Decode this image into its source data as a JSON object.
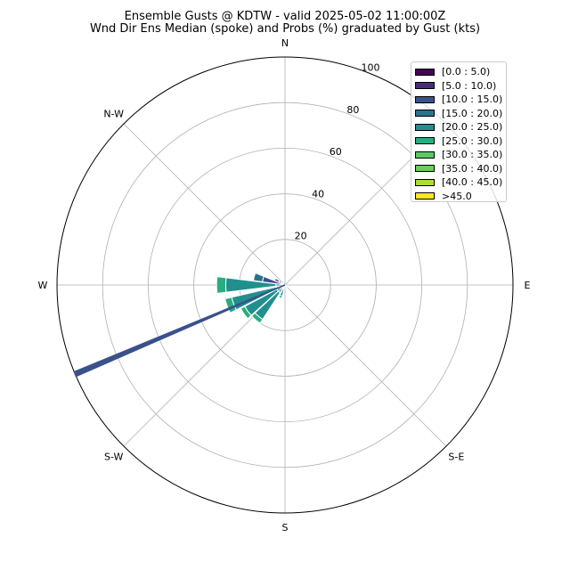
{
  "title": "Ensemble Gusts @ KDTW - valid 2025-05-02 11:00:00Z",
  "subtitle": "Wnd Dir Ens Median (spoke) and Probs (%) graduated by Gust (kts)",
  "chart_data": {
    "type": "windrose",
    "title": "Ensemble Gusts @ KDTW - valid 2025-05-02 11:00:00Z",
    "subtitle": "Wnd Dir Ens Median (spoke) and Probs (%) graduated by Gust (kts)",
    "rlim": [
      0,
      100
    ],
    "radial_ticks": [
      20,
      40,
      60,
      80,
      100
    ],
    "direction_labels": [
      {
        "label": "N",
        "deg": 0
      },
      {
        "label": "N-W",
        "deg": 315
      },
      {
        "label": "W",
        "deg": 270
      },
      {
        "label": "S-W",
        "deg": 225
      },
      {
        "label": "S",
        "deg": 180
      },
      {
        "label": "S-E",
        "deg": 135
      },
      {
        "label": "E",
        "deg": 90
      }
    ],
    "grid": true,
    "legend_position": "top-right",
    "bins": [
      {
        "label": "[0.0 : 5.0)",
        "color": "#440154"
      },
      {
        "label": "[5.0 : 10.0)",
        "color": "#472c7a"
      },
      {
        "label": "[10.0 : 15.0)",
        "color": "#3b518b"
      },
      {
        "label": "[15.0 : 20.0)",
        "color": "#2c718e"
      },
      {
        "label": "[20.0 : 25.0)",
        "color": "#21908d"
      },
      {
        "label": "[25.0 : 30.0)",
        "color": "#27ad81"
      },
      {
        "label": "[30.0 : 35.0)",
        "color": "#5cc863"
      },
      {
        "label": "[35.0 : 40.0)",
        "color": "#6ccd5a"
      },
      {
        "label": "[40.0 : 45.0)",
        "color": "#aadc32"
      },
      {
        "label": ">45.0",
        "color": "#fde725"
      }
    ],
    "sectors": [
      {
        "dir": 270,
        "values": [
          0,
          0,
          0,
          4,
          22,
          4
        ]
      },
      {
        "dir": 250,
        "values": [
          0,
          0,
          0,
          4,
          20,
          3
        ]
      },
      {
        "dir": 235,
        "values": [
          0,
          0,
          0,
          4,
          16,
          2
        ]
      },
      {
        "dir": 220,
        "values": [
          0,
          0,
          0,
          4,
          14,
          2
        ]
      },
      {
        "dir": 200,
        "values": [
          0,
          0,
          0,
          2,
          3,
          1
        ]
      },
      {
        "dir": 285,
        "values": [
          0,
          2,
          8,
          4
        ]
      },
      {
        "dir": 300,
        "values": [
          0,
          3,
          2
        ]
      },
      {
        "dir": 90,
        "values": [
          0,
          0,
          0
        ]
      },
      {
        "dir": 120,
        "values": [
          0,
          0,
          0,
          0,
          2
        ]
      },
      {
        "dir": 160,
        "values": [
          0,
          0,
          0,
          0,
          1
        ]
      }
    ],
    "spoke": {
      "dir": 247,
      "value": 100,
      "color": "#3b518b"
    }
  }
}
